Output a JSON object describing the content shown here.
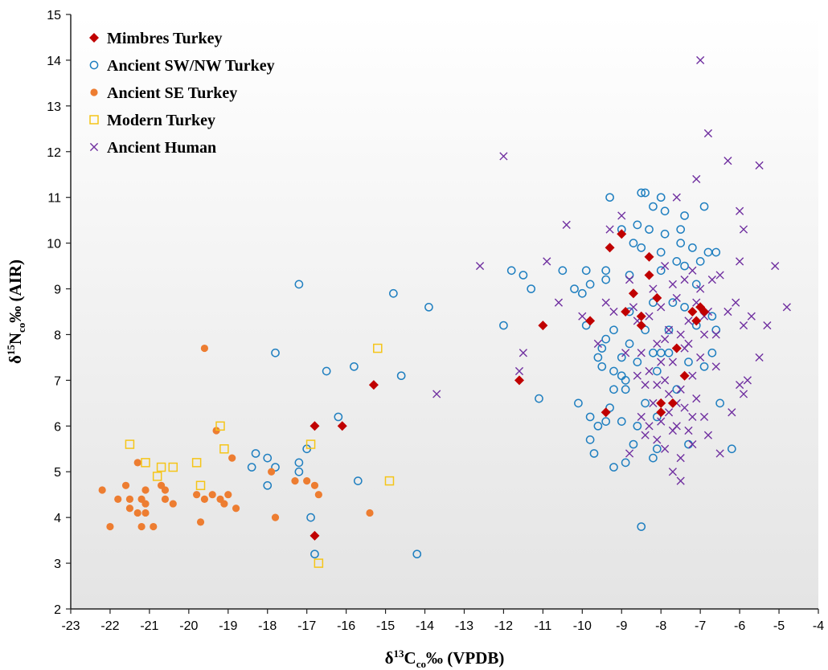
{
  "chart_data": {
    "type": "scatter",
    "xlabel": "δ13Cco‰ (VPDB)",
    "ylabel": "δ15Nco‰ (AIR)",
    "xlabel_parts": {
      "pre": "δ",
      "sup": "13",
      "main": "C",
      "sub": "co",
      "post": "‰ (VPDB)"
    },
    "ylabel_parts": {
      "pre": "δ",
      "sup": "15",
      "main": "N",
      "sub": "co",
      "post": "‰ (AIR)"
    },
    "xlim": [
      -23,
      -4
    ],
    "ylim": [
      2,
      15
    ],
    "xticks": [
      "-23",
      "-22",
      "-21",
      "-20",
      "-19",
      "-18",
      "-17",
      "-16",
      "-15",
      "-14",
      "-13",
      "-12",
      "-11",
      "-10",
      "-9",
      "-8",
      "-7",
      "-6",
      "-5",
      "-4"
    ],
    "yticks": [
      "2",
      "3",
      "4",
      "5",
      "6",
      "7",
      "8",
      "9",
      "10",
      "11",
      "12",
      "13",
      "14",
      "15"
    ],
    "grid": false,
    "legend_position": "top-left",
    "series": [
      {
        "name": "Mimbres Turkey",
        "marker": "diamond",
        "color": "#c00000",
        "points": [
          [
            -16.8,
            3.6
          ],
          [
            -16.8,
            6.0
          ],
          [
            -16.1,
            6.0
          ],
          [
            -15.3,
            6.9
          ],
          [
            -11.6,
            7.0
          ],
          [
            -11.0,
            8.2
          ],
          [
            -9.8,
            8.3
          ],
          [
            -9.4,
            6.3
          ],
          [
            -9.3,
            9.9
          ],
          [
            -9.0,
            10.2
          ],
          [
            -8.9,
            8.5
          ],
          [
            -8.7,
            8.9
          ],
          [
            -8.5,
            8.4
          ],
          [
            -8.5,
            8.2
          ],
          [
            -8.3,
            9.7
          ],
          [
            -8.3,
            9.3
          ],
          [
            -8.1,
            8.8
          ],
          [
            -8.0,
            6.5
          ],
          [
            -8.0,
            6.3
          ],
          [
            -7.7,
            6.5
          ],
          [
            -7.6,
            7.7
          ],
          [
            -7.4,
            7.1
          ],
          [
            -7.2,
            8.5
          ],
          [
            -7.0,
            8.6
          ],
          [
            -6.9,
            8.5
          ],
          [
            -7.1,
            8.3
          ]
        ]
      },
      {
        "name": "Ancient SW/NW Turkey",
        "marker": "circle-open",
        "color": "#1f7fc0",
        "points": [
          [
            -18.3,
            5.4
          ],
          [
            -18.4,
            5.1
          ],
          [
            -18.0,
            5.3
          ],
          [
            -18.0,
            4.7
          ],
          [
            -17.8,
            5.1
          ],
          [
            -17.8,
            7.6
          ],
          [
            -17.2,
            9.1
          ],
          [
            -17.2,
            5.2
          ],
          [
            -17.2,
            5.0
          ],
          [
            -17.0,
            5.5
          ],
          [
            -16.9,
            4.0
          ],
          [
            -16.8,
            3.2
          ],
          [
            -16.5,
            7.2
          ],
          [
            -16.2,
            6.2
          ],
          [
            -15.8,
            7.3
          ],
          [
            -15.7,
            4.8
          ],
          [
            -14.8,
            8.9
          ],
          [
            -14.6,
            7.1
          ],
          [
            -14.2,
            3.2
          ],
          [
            -13.9,
            8.6
          ],
          [
            -12.0,
            8.2
          ],
          [
            -11.8,
            9.4
          ],
          [
            -11.5,
            9.3
          ],
          [
            -11.3,
            9.0
          ],
          [
            -11.1,
            6.6
          ],
          [
            -10.5,
            9.4
          ],
          [
            -10.2,
            9.0
          ],
          [
            -10.1,
            6.5
          ],
          [
            -9.9,
            9.4
          ],
          [
            -9.9,
            8.2
          ],
          [
            -9.8,
            5.7
          ],
          [
            -9.8,
            6.2
          ],
          [
            -9.7,
            5.4
          ],
          [
            -9.8,
            9.1
          ],
          [
            -9.6,
            6.0
          ],
          [
            -9.6,
            7.5
          ],
          [
            -9.5,
            7.7
          ],
          [
            -9.5,
            7.3
          ],
          [
            -9.4,
            7.9
          ],
          [
            -9.4,
            9.2
          ],
          [
            -9.4,
            9.4
          ],
          [
            -9.3,
            11.0
          ],
          [
            -9.3,
            6.4
          ],
          [
            -9.4,
            6.1
          ],
          [
            -9.2,
            8.1
          ],
          [
            -9.2,
            7.2
          ],
          [
            -9.2,
            5.1
          ],
          [
            -9.0,
            6.1
          ],
          [
            -9.0,
            7.1
          ],
          [
            -9.0,
            7.5
          ],
          [
            -9.0,
            10.3
          ],
          [
            -8.9,
            5.2
          ],
          [
            -8.9,
            6.8
          ],
          [
            -8.8,
            7.8
          ],
          [
            -8.8,
            8.5
          ],
          [
            -8.8,
            9.3
          ],
          [
            -8.7,
            10.0
          ],
          [
            -8.7,
            5.6
          ],
          [
            -8.6,
            6.0
          ],
          [
            -8.6,
            7.4
          ],
          [
            -8.6,
            10.4
          ],
          [
            -8.5,
            11.1
          ],
          [
            -8.5,
            9.9
          ],
          [
            -8.4,
            11.1
          ],
          [
            -8.4,
            6.5
          ],
          [
            -8.4,
            8.1
          ],
          [
            -8.3,
            10.3
          ],
          [
            -8.2,
            10.8
          ],
          [
            -8.2,
            8.7
          ],
          [
            -8.2,
            7.6
          ],
          [
            -8.2,
            5.3
          ],
          [
            -8.1,
            5.5
          ],
          [
            -8.1,
            6.2
          ],
          [
            -8.0,
            7.6
          ],
          [
            -8.0,
            9.4
          ],
          [
            -8.0,
            9.8
          ],
          [
            -8.0,
            11.0
          ],
          [
            -7.9,
            10.7
          ],
          [
            -7.9,
            10.2
          ],
          [
            -7.8,
            8.1
          ],
          [
            -7.8,
            7.6
          ],
          [
            -7.7,
            8.7
          ],
          [
            -7.6,
            9.6
          ],
          [
            -7.6,
            6.8
          ],
          [
            -7.5,
            10.0
          ],
          [
            -7.5,
            10.3
          ],
          [
            -7.4,
            10.6
          ],
          [
            -7.4,
            9.5
          ],
          [
            -7.4,
            8.6
          ],
          [
            -7.3,
            7.4
          ],
          [
            -7.3,
            5.6
          ],
          [
            -7.2,
            9.9
          ],
          [
            -7.1,
            9.1
          ],
          [
            -7.1,
            8.2
          ],
          [
            -7.0,
            9.6
          ],
          [
            -6.9,
            10.8
          ],
          [
            -6.9,
            7.3
          ],
          [
            -6.8,
            9.8
          ],
          [
            -6.7,
            8.4
          ],
          [
            -6.7,
            7.6
          ],
          [
            -6.6,
            9.8
          ],
          [
            -6.6,
            8.1
          ],
          [
            -6.5,
            6.5
          ],
          [
            -6.2,
            5.5
          ],
          [
            -8.5,
            3.8
          ],
          [
            -10.0,
            8.9
          ],
          [
            -9.2,
            6.8
          ],
          [
            -8.9,
            7.0
          ],
          [
            -8.1,
            7.2
          ]
        ]
      },
      {
        "name": "Ancient SE Turkey",
        "marker": "circle-filled",
        "color": "#ed7d31",
        "points": [
          [
            -22.2,
            4.6
          ],
          [
            -22.0,
            3.8
          ],
          [
            -21.8,
            4.4
          ],
          [
            -21.6,
            4.7
          ],
          [
            -21.5,
            4.4
          ],
          [
            -21.5,
            4.2
          ],
          [
            -21.3,
            4.1
          ],
          [
            -21.3,
            5.2
          ],
          [
            -21.2,
            3.8
          ],
          [
            -21.2,
            4.4
          ],
          [
            -21.1,
            4.3
          ],
          [
            -21.1,
            4.6
          ],
          [
            -21.1,
            4.1
          ],
          [
            -20.9,
            3.8
          ],
          [
            -20.7,
            4.7
          ],
          [
            -20.6,
            4.4
          ],
          [
            -20.6,
            4.6
          ],
          [
            -20.4,
            4.3
          ],
          [
            -19.8,
            4.5
          ],
          [
            -19.7,
            3.9
          ],
          [
            -19.6,
            4.4
          ],
          [
            -19.6,
            7.7
          ],
          [
            -19.4,
            4.5
          ],
          [
            -19.3,
            5.9
          ],
          [
            -19.2,
            4.4
          ],
          [
            -19.1,
            4.3
          ],
          [
            -19.0,
            4.5
          ],
          [
            -18.9,
            5.3
          ],
          [
            -18.8,
            4.2
          ],
          [
            -17.9,
            5.0
          ],
          [
            -17.8,
            4.0
          ],
          [
            -17.3,
            4.8
          ],
          [
            -17.0,
            4.8
          ],
          [
            -16.8,
            4.7
          ],
          [
            -16.7,
            4.5
          ],
          [
            -15.4,
            4.1
          ]
        ]
      },
      {
        "name": "Modern Turkey",
        "marker": "square-open",
        "color": "#f5c518",
        "points": [
          [
            -21.5,
            5.6
          ],
          [
            -21.1,
            5.2
          ],
          [
            -20.8,
            4.9
          ],
          [
            -20.7,
            5.1
          ],
          [
            -20.4,
            5.1
          ],
          [
            -19.8,
            5.2
          ],
          [
            -19.7,
            4.7
          ],
          [
            -19.2,
            6.0
          ],
          [
            -19.1,
            5.5
          ],
          [
            -16.9,
            5.6
          ],
          [
            -16.7,
            3.0
          ],
          [
            -15.2,
            7.7
          ],
          [
            -14.9,
            4.8
          ]
        ]
      },
      {
        "name": "Ancient Human",
        "marker": "x",
        "color": "#7030a0",
        "points": [
          [
            -13.7,
            6.7
          ],
          [
            -12.6,
            9.5
          ],
          [
            -12.0,
            11.9
          ],
          [
            -11.6,
            7.2
          ],
          [
            -11.5,
            7.6
          ],
          [
            -10.9,
            9.6
          ],
          [
            -10.6,
            8.7
          ],
          [
            -10.4,
            10.4
          ],
          [
            -10.0,
            8.4
          ],
          [
            -9.6,
            7.8
          ],
          [
            -9.4,
            8.7
          ],
          [
            -9.3,
            10.3
          ],
          [
            -9.2,
            8.5
          ],
          [
            -9.0,
            10.6
          ],
          [
            -8.9,
            7.6
          ],
          [
            -8.8,
            9.2
          ],
          [
            -8.7,
            8.6
          ],
          [
            -8.6,
            7.1
          ],
          [
            -8.5,
            6.2
          ],
          [
            -8.5,
            7.6
          ],
          [
            -8.4,
            6.9
          ],
          [
            -8.4,
            5.8
          ],
          [
            -8.3,
            8.4
          ],
          [
            -8.3,
            7.2
          ],
          [
            -8.2,
            9.0
          ],
          [
            -8.2,
            6.5
          ],
          [
            -8.1,
            7.8
          ],
          [
            -8.1,
            6.9
          ],
          [
            -8.0,
            8.6
          ],
          [
            -8.0,
            7.4
          ],
          [
            -8.0,
            6.1
          ],
          [
            -7.9,
            9.5
          ],
          [
            -7.9,
            7.0
          ],
          [
            -7.9,
            5.5
          ],
          [
            -7.8,
            8.1
          ],
          [
            -7.8,
            6.7
          ],
          [
            -7.8,
            6.3
          ],
          [
            -7.7,
            9.1
          ],
          [
            -7.7,
            7.4
          ],
          [
            -7.7,
            5.0
          ],
          [
            -7.6,
            11.0
          ],
          [
            -7.6,
            8.8
          ],
          [
            -7.6,
            6.0
          ],
          [
            -7.5,
            8.0
          ],
          [
            -7.5,
            6.8
          ],
          [
            -7.5,
            5.3
          ],
          [
            -7.5,
            4.8
          ],
          [
            -7.4,
            9.2
          ],
          [
            -7.4,
            7.7
          ],
          [
            -7.4,
            6.4
          ],
          [
            -7.3,
            8.3
          ],
          [
            -7.3,
            5.9
          ],
          [
            -7.2,
            9.4
          ],
          [
            -7.2,
            7.1
          ],
          [
            -7.2,
            6.2
          ],
          [
            -7.1,
            11.4
          ],
          [
            -7.1,
            8.7
          ],
          [
            -7.1,
            6.6
          ],
          [
            -7.0,
            14.0
          ],
          [
            -7.0,
            9.0
          ],
          [
            -7.0,
            7.5
          ],
          [
            -6.9,
            8.0
          ],
          [
            -6.9,
            6.2
          ],
          [
            -6.8,
            12.4
          ],
          [
            -6.8,
            8.5
          ],
          [
            -6.8,
            5.8
          ],
          [
            -6.7,
            9.2
          ],
          [
            -6.6,
            8.0
          ],
          [
            -6.5,
            9.3
          ],
          [
            -6.5,
            5.4
          ],
          [
            -6.3,
            11.8
          ],
          [
            -6.3,
            8.5
          ],
          [
            -6.2,
            6.3
          ],
          [
            -6.1,
            8.7
          ],
          [
            -6.0,
            10.7
          ],
          [
            -6.0,
            9.6
          ],
          [
            -6.0,
            6.9
          ],
          [
            -5.9,
            10.3
          ],
          [
            -5.9,
            8.2
          ],
          [
            -5.9,
            6.7
          ],
          [
            -5.8,
            7.0
          ],
          [
            -5.7,
            8.4
          ],
          [
            -5.5,
            11.7
          ],
          [
            -5.5,
            7.5
          ],
          [
            -5.3,
            8.2
          ],
          [
            -5.1,
            9.5
          ],
          [
            -4.8,
            8.6
          ],
          [
            -8.6,
            8.3
          ],
          [
            -8.3,
            6.0
          ],
          [
            -7.9,
            7.9
          ],
          [
            -7.6,
            6.5
          ],
          [
            -7.3,
            7.8
          ],
          [
            -6.9,
            8.4
          ],
          [
            -6.6,
            7.3
          ],
          [
            -8.8,
            5.4
          ],
          [
            -8.1,
            5.7
          ],
          [
            -7.7,
            5.9
          ],
          [
            -7.2,
            5.6
          ]
        ]
      }
    ]
  }
}
